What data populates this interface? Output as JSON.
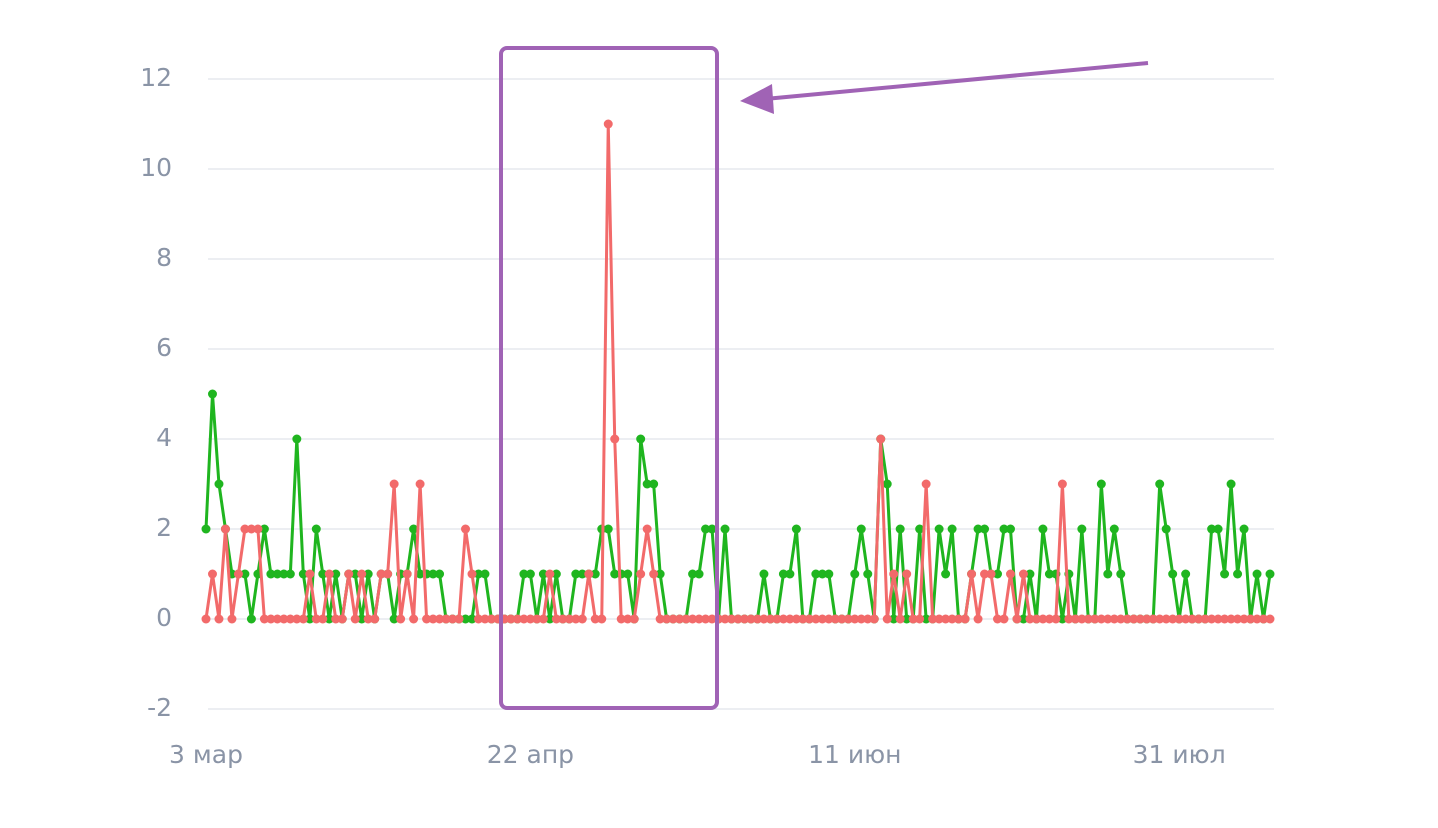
{
  "chart_data": {
    "type": "line",
    "categories": [
      "3 мар",
      null,
      null,
      null,
      null,
      null,
      null,
      null,
      null,
      null,
      null,
      null,
      null,
      null,
      null,
      null,
      null,
      null,
      null,
      null,
      null,
      null,
      null,
      null,
      null,
      null,
      null,
      null,
      null,
      null,
      null,
      null,
      null,
      null,
      null,
      null,
      null,
      null,
      null,
      null,
      null,
      null,
      null,
      null,
      null,
      null,
      null,
      null,
      null,
      null,
      "22 апр",
      null,
      null,
      null,
      null,
      null,
      null,
      null,
      null,
      null,
      null,
      null,
      null,
      null,
      null,
      null,
      null,
      null,
      null,
      null,
      null,
      null,
      null,
      null,
      null,
      null,
      null,
      null,
      null,
      null,
      null,
      null,
      null,
      null,
      null,
      null,
      null,
      null,
      null,
      null,
      null,
      null,
      null,
      null,
      null,
      null,
      null,
      null,
      null,
      null,
      "11 июн",
      null,
      null,
      null,
      null,
      null,
      null,
      null,
      null,
      null,
      null,
      null,
      null,
      null,
      null,
      null,
      null,
      null,
      null,
      null,
      null,
      null,
      null,
      null,
      null,
      null,
      null,
      null,
      null,
      null,
      null,
      null,
      null,
      null,
      null,
      null,
      null,
      null,
      null,
      null,
      null,
      null,
      null,
      null,
      null,
      null,
      null,
      null,
      null,
      null,
      "31 июл",
      null,
      null,
      null,
      null,
      null,
      null,
      null,
      null,
      null,
      null,
      null,
      null,
      null,
      null
    ],
    "series": [
      {
        "color": "#1fb51f",
        "values": [
          2,
          5,
          3,
          2,
          1,
          1,
          1,
          0,
          1,
          2,
          1,
          1,
          1,
          1,
          4,
          1,
          0,
          2,
          1,
          0,
          1,
          0,
          1,
          1,
          0,
          1,
          0,
          1,
          1,
          0,
          1,
          1,
          2,
          1,
          1,
          1,
          1,
          0,
          0,
          0,
          0,
          0,
          1,
          1,
          0,
          0,
          0,
          0,
          0,
          1,
          1,
          0,
          1,
          0,
          1,
          0,
          0,
          1,
          1,
          1,
          1,
          2,
          2,
          1,
          1,
          1,
          0,
          4,
          3,
          3,
          1,
          0,
          0,
          0,
          0,
          1,
          1,
          2,
          2,
          0,
          2,
          0,
          0,
          0,
          0,
          0,
          1,
          0,
          0,
          1,
          1,
          2,
          0,
          0,
          1,
          1,
          1,
          0,
          0,
          0,
          1,
          2,
          1,
          0,
          4,
          3,
          0,
          2,
          0,
          0,
          2,
          0,
          0,
          2,
          1,
          2,
          0,
          0,
          1,
          2,
          2,
          1,
          1,
          2,
          2,
          0,
          0,
          1,
          0,
          2,
          1,
          1,
          0,
          1,
          0,
          2,
          0,
          0,
          3,
          1,
          2,
          1,
          0,
          0,
          0,
          0,
          0,
          3,
          2,
          1,
          0,
          1,
          0,
          0,
          0,
          2,
          2,
          1,
          3,
          1,
          2,
          0,
          1,
          0,
          1
        ]
      },
      {
        "color": "#f26a6a",
        "values": [
          0,
          1,
          0,
          2,
          0,
          1,
          2,
          2,
          2,
          0,
          0,
          0,
          0,
          0,
          0,
          0,
          1,
          0,
          0,
          1,
          0,
          0,
          1,
          0,
          1,
          0,
          0,
          1,
          1,
          3,
          0,
          1,
          0,
          3,
          0,
          0,
          0,
          0,
          0,
          0,
          2,
          1,
          0,
          0,
          0,
          0,
          0,
          0,
          0,
          0,
          0,
          0,
          0,
          1,
          0,
          0,
          0,
          0,
          0,
          1,
          0,
          0,
          11,
          4,
          0,
          0,
          0,
          1,
          2,
          1,
          0,
          0,
          0,
          0,
          0,
          0,
          0,
          0,
          0,
          0,
          0,
          0,
          0,
          0,
          0,
          0,
          0,
          0,
          0,
          0,
          0,
          0,
          0,
          0,
          0,
          0,
          0,
          0,
          0,
          0,
          0,
          0,
          0,
          0,
          4,
          0,
          1,
          0,
          1,
          0,
          0,
          3,
          0,
          0,
          0,
          0,
          0,
          0,
          1,
          0,
          1,
          1,
          0,
          0,
          1,
          0,
          1,
          0,
          0,
          0,
          0,
          0,
          3,
          0,
          0,
          0,
          0,
          0,
          0,
          0,
          0,
          0,
          0,
          0,
          0,
          0,
          0,
          0,
          0,
          0,
          0,
          0,
          0,
          0,
          0,
          0,
          0,
          0,
          0,
          0,
          0,
          0,
          0,
          0,
          0
        ]
      }
    ],
    "ylim": [
      -2.4,
      12.4
    ],
    "yticks": [
      -2,
      0,
      2,
      4,
      6,
      8,
      10,
      12
    ],
    "grid": true
  }
}
